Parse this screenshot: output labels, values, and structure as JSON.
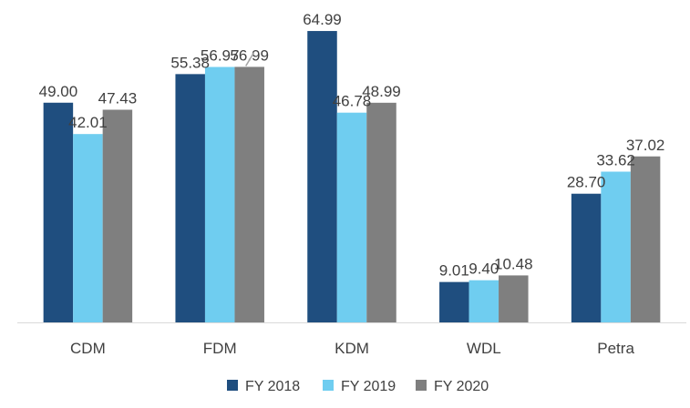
{
  "chart_data": {
    "type": "bar",
    "title": "",
    "xlabel": "",
    "ylabel": "",
    "categories": [
      "CDM",
      "FDM",
      "KDM",
      "WDL",
      "Petra"
    ],
    "series": [
      {
        "name": "FY 2018",
        "color": "#1f4e7f",
        "values": [
          49.0,
          55.38,
          64.99,
          9.01,
          28.7
        ],
        "labels": [
          "49.00",
          "55.38",
          "64.99",
          "9.01",
          "28.70"
        ]
      },
      {
        "name": "FY 2019",
        "color": "#6fcdf0",
        "values": [
          42.01,
          56.97,
          46.78,
          9.4,
          33.62
        ],
        "labels": [
          "42.01",
          "56.97",
          "46.78",
          "9.40",
          "33.62"
        ]
      },
      {
        "name": "FY 2020",
        "color": "#7f7f7f",
        "values": [
          47.43,
          56.99,
          48.99,
          10.48,
          37.02
        ],
        "labels": [
          "47.43",
          "56.99",
          "48.99",
          "10.48",
          "37.02"
        ]
      }
    ],
    "ylim": [
      0,
      65
    ],
    "grid": false,
    "legend_position": "bottom"
  }
}
